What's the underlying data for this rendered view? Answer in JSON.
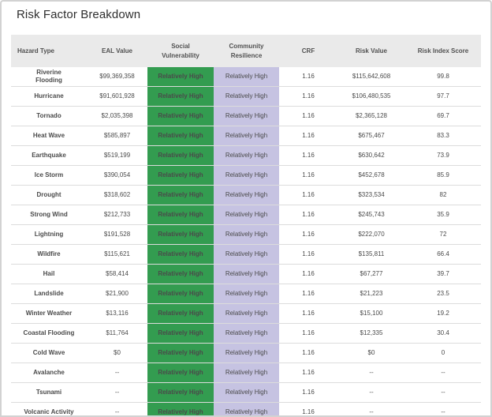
{
  "page": {
    "title": "Risk Factor Breakdown"
  },
  "colors": {
    "social_vulnerability_badge_bg": "#339c50",
    "social_vulnerability_badge_text": "#ffffff",
    "community_resilience_badge_bg": "#c6c3e2",
    "community_resilience_badge_text": "#3c3c46",
    "header_bg": "#eaeaea"
  },
  "table": {
    "columns": [
      {
        "key": "hazard",
        "label": "Hazard Type"
      },
      {
        "key": "eal_value",
        "label": "EAL Value"
      },
      {
        "key": "social_vulnerability",
        "label": "Social Vulnerability"
      },
      {
        "key": "community_resilience",
        "label": "Community Resilience"
      },
      {
        "key": "crf",
        "label": "CRF"
      },
      {
        "key": "risk_value",
        "label": "Risk Value"
      },
      {
        "key": "risk_index_score",
        "label": "Risk Index Score"
      }
    ],
    "rows": [
      {
        "hazard": "Riverine Flooding",
        "eal_value": "$99,369,358",
        "social_vulnerability": "Relatively High",
        "community_resilience": "Relatively High",
        "crf": "1.16",
        "risk_value": "$115,642,608",
        "risk_index_score": "99.8"
      },
      {
        "hazard": "Hurricane",
        "eal_value": "$91,601,928",
        "social_vulnerability": "Relatively High",
        "community_resilience": "Relatively High",
        "crf": "1.16",
        "risk_value": "$106,480,535",
        "risk_index_score": "97.7"
      },
      {
        "hazard": "Tornado",
        "eal_value": "$2,035,398",
        "social_vulnerability": "Relatively High",
        "community_resilience": "Relatively High",
        "crf": "1.16",
        "risk_value": "$2,365,128",
        "risk_index_score": "69.7"
      },
      {
        "hazard": "Heat Wave",
        "eal_value": "$585,897",
        "social_vulnerability": "Relatively High",
        "community_resilience": "Relatively High",
        "crf": "1.16",
        "risk_value": "$675,467",
        "risk_index_score": "83.3"
      },
      {
        "hazard": "Earthquake",
        "eal_value": "$519,199",
        "social_vulnerability": "Relatively High",
        "community_resilience": "Relatively High",
        "crf": "1.16",
        "risk_value": "$630,642",
        "risk_index_score": "73.9"
      },
      {
        "hazard": "Ice Storm",
        "eal_value": "$390,054",
        "social_vulnerability": "Relatively High",
        "community_resilience": "Relatively High",
        "crf": "1.16",
        "risk_value": "$452,678",
        "risk_index_score": "85.9"
      },
      {
        "hazard": "Drought",
        "eal_value": "$318,602",
        "social_vulnerability": "Relatively High",
        "community_resilience": "Relatively High",
        "crf": "1.16",
        "risk_value": "$323,534",
        "risk_index_score": "82"
      },
      {
        "hazard": "Strong Wind",
        "eal_value": "$212,733",
        "social_vulnerability": "Relatively High",
        "community_resilience": "Relatively High",
        "crf": "1.16",
        "risk_value": "$245,743",
        "risk_index_score": "35.9"
      },
      {
        "hazard": "Lightning",
        "eal_value": "$191,528",
        "social_vulnerability": "Relatively High",
        "community_resilience": "Relatively High",
        "crf": "1.16",
        "risk_value": "$222,070",
        "risk_index_score": "72"
      },
      {
        "hazard": "Wildfire",
        "eal_value": "$115,621",
        "social_vulnerability": "Relatively High",
        "community_resilience": "Relatively High",
        "crf": "1.16",
        "risk_value": "$135,811",
        "risk_index_score": "66.4"
      },
      {
        "hazard": "Hail",
        "eal_value": "$58,414",
        "social_vulnerability": "Relatively High",
        "community_resilience": "Relatively High",
        "crf": "1.16",
        "risk_value": "$67,277",
        "risk_index_score": "39.7"
      },
      {
        "hazard": "Landslide",
        "eal_value": "$21,900",
        "social_vulnerability": "Relatively High",
        "community_resilience": "Relatively High",
        "crf": "1.16",
        "risk_value": "$21,223",
        "risk_index_score": "23.5"
      },
      {
        "hazard": "Winter Weather",
        "eal_value": "$13,116",
        "social_vulnerability": "Relatively High",
        "community_resilience": "Relatively High",
        "crf": "1.16",
        "risk_value": "$15,100",
        "risk_index_score": "19.2"
      },
      {
        "hazard": "Coastal Flooding",
        "eal_value": "$11,764",
        "social_vulnerability": "Relatively High",
        "community_resilience": "Relatively High",
        "crf": "1.16",
        "risk_value": "$12,335",
        "risk_index_score": "30.4"
      },
      {
        "hazard": "Cold Wave",
        "eal_value": "$0",
        "social_vulnerability": "Relatively High",
        "community_resilience": "Relatively High",
        "crf": "1.16",
        "risk_value": "$0",
        "risk_index_score": "0"
      },
      {
        "hazard": "Avalanche",
        "eal_value": "--",
        "social_vulnerability": "Relatively High",
        "community_resilience": "Relatively High",
        "crf": "1.16",
        "risk_value": "--",
        "risk_index_score": "--"
      },
      {
        "hazard": "Tsunami",
        "eal_value": "--",
        "social_vulnerability": "Relatively High",
        "community_resilience": "Relatively High",
        "crf": "1.16",
        "risk_value": "--",
        "risk_index_score": "--"
      },
      {
        "hazard": "Volcanic Activity",
        "eal_value": "--",
        "social_vulnerability": "Relatively High",
        "community_resilience": "Relatively High",
        "crf": "1.16",
        "risk_value": "--",
        "risk_index_score": "--"
      }
    ]
  }
}
